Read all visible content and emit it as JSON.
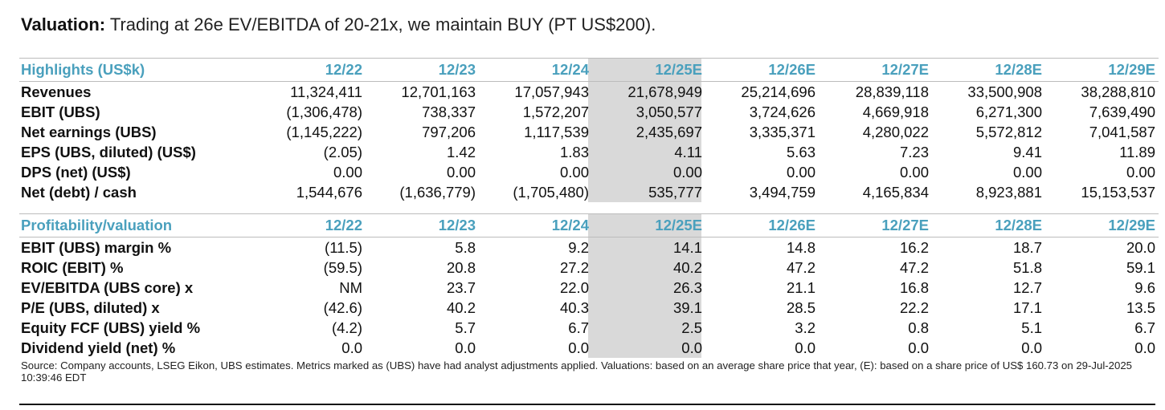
{
  "title": {
    "bold": "Valuation:",
    "rest": " Trading at 26e EV/EBITDA of 20-21x, we maintain BUY (PT US$200)."
  },
  "highlights": {
    "header": [
      "Highlights (US$k)",
      "12/22",
      "12/23",
      "12/24",
      "12/25E",
      "12/26E",
      "12/27E",
      "12/28E",
      "12/29E"
    ],
    "rows": [
      [
        "Revenues",
        "11,324,411",
        "12,701,163",
        "17,057,943",
        "21,678,949",
        "25,214,696",
        "28,839,118",
        "33,500,908",
        "38,288,810"
      ],
      [
        "EBIT (UBS)",
        "(1,306,478)",
        "738,337",
        "1,572,207",
        "3,050,577",
        "3,724,626",
        "4,669,918",
        "6,271,300",
        "7,639,490"
      ],
      [
        "Net earnings (UBS)",
        "(1,145,222)",
        "797,206",
        "1,117,539",
        "2,435,697",
        "3,335,371",
        "4,280,022",
        "5,572,812",
        "7,041,587"
      ],
      [
        "EPS (UBS, diluted) (US$)",
        "(2.05)",
        "1.42",
        "1.83",
        "4.11",
        "5.63",
        "7.23",
        "9.41",
        "11.89"
      ],
      [
        "DPS (net) (US$)",
        "0.00",
        "0.00",
        "0.00",
        "0.00",
        "0.00",
        "0.00",
        "0.00",
        "0.00"
      ],
      [
        "Net (debt) / cash",
        "1,544,676",
        "(1,636,779)",
        "(1,705,480)",
        "535,777",
        "3,494,759",
        "4,165,834",
        "8,923,881",
        "15,153,537"
      ]
    ]
  },
  "profitability": {
    "header": [
      "Profitability/valuation",
      "12/22",
      "12/23",
      "12/24",
      "12/25E",
      "12/26E",
      "12/27E",
      "12/28E",
      "12/29E"
    ],
    "rows": [
      [
        "EBIT (UBS) margin %",
        "(11.5)",
        "5.8",
        "9.2",
        "14.1",
        "14.8",
        "16.2",
        "18.7",
        "20.0"
      ],
      [
        "ROIC (EBIT) %",
        "(59.5)",
        "20.8",
        "27.2",
        "40.2",
        "47.2",
        "47.2",
        "51.8",
        "59.1"
      ],
      [
        "EV/EBITDA (UBS core) x",
        "NM",
        "23.7",
        "22.0",
        "26.3",
        "21.1",
        "16.8",
        "12.7",
        "9.6"
      ],
      [
        "P/E (UBS, diluted) x",
        "(42.6)",
        "40.2",
        "40.3",
        "39.1",
        "28.5",
        "22.2",
        "17.1",
        "13.5"
      ],
      [
        "Equity FCF (UBS) yield %",
        "(4.2)",
        "5.7",
        "6.7",
        "2.5",
        "3.2",
        "0.8",
        "5.1",
        "6.7"
      ],
      [
        "Dividend yield (net) %",
        "0.0",
        "0.0",
        "0.0",
        "0.0",
        "0.0",
        "0.0",
        "0.0",
        "0.0"
      ]
    ]
  },
  "source": "Source: Company accounts, LSEG Eikon, UBS estimates. Metrics marked as (UBS) have had analyst adjustments applied. Valuations: based on an average share price that year, (E): based on a share price of US$ 160.73 on 29-Jul-2025 10:39:46 EDT",
  "colors": {
    "header_text": "#4aa0bd",
    "current_year_shade": "#d9d9d9"
  }
}
